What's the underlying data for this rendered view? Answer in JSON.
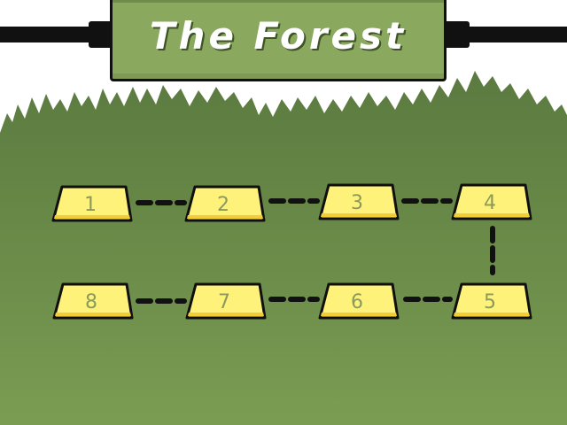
{
  "title": "The Forest",
  "colors": {
    "forest_dark": "#5b7a40",
    "forest_light": "#78994e",
    "sign_green": "#8aa85e",
    "tile_yellow": "#fff27a",
    "tile_edge": "#f2cc3a",
    "outline": "#101010",
    "number_text": "#8a9a5a"
  },
  "levels": [
    {
      "number": "1"
    },
    {
      "number": "2"
    },
    {
      "number": "3"
    },
    {
      "number": "4"
    },
    {
      "number": "5"
    },
    {
      "number": "6"
    },
    {
      "number": "7"
    },
    {
      "number": "8"
    }
  ]
}
